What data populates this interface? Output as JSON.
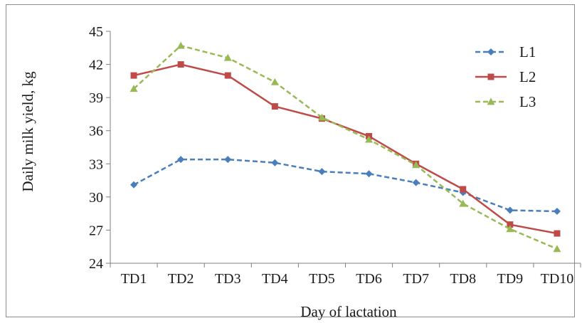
{
  "chart_data": {
    "type": "line",
    "title": "",
    "xlabel": "Day of lactation",
    "ylabel": "Daily milk yield, kg",
    "categories": [
      "TD1",
      "TD2",
      "TD3",
      "TD4",
      "TD5",
      "TD6",
      "TD7",
      "TD8",
      "TD9",
      "TD10"
    ],
    "ylim": [
      24,
      45
    ],
    "yticks": [
      24,
      27,
      30,
      33,
      36,
      39,
      42,
      45
    ],
    "grid": false,
    "legend_position": "right",
    "series": [
      {
        "name": "L1",
        "values": [
          31.1,
          33.4,
          33.4,
          33.1,
          32.3,
          32.1,
          31.3,
          30.4,
          28.8,
          28.7
        ],
        "color": "#4a7ebb",
        "dash": "dashed",
        "marker": "diamond"
      },
      {
        "name": "L2",
        "values": [
          41.0,
          42.0,
          41.0,
          38.2,
          37.1,
          35.5,
          33.0,
          30.7,
          27.5,
          26.7
        ],
        "color": "#be4b48",
        "dash": "solid",
        "marker": "square"
      },
      {
        "name": "L3",
        "values": [
          39.8,
          43.7,
          42.6,
          40.4,
          37.2,
          35.2,
          32.9,
          29.4,
          27.1,
          25.3
        ],
        "color": "#98b954",
        "dash": "dashed",
        "marker": "triangle"
      }
    ]
  }
}
